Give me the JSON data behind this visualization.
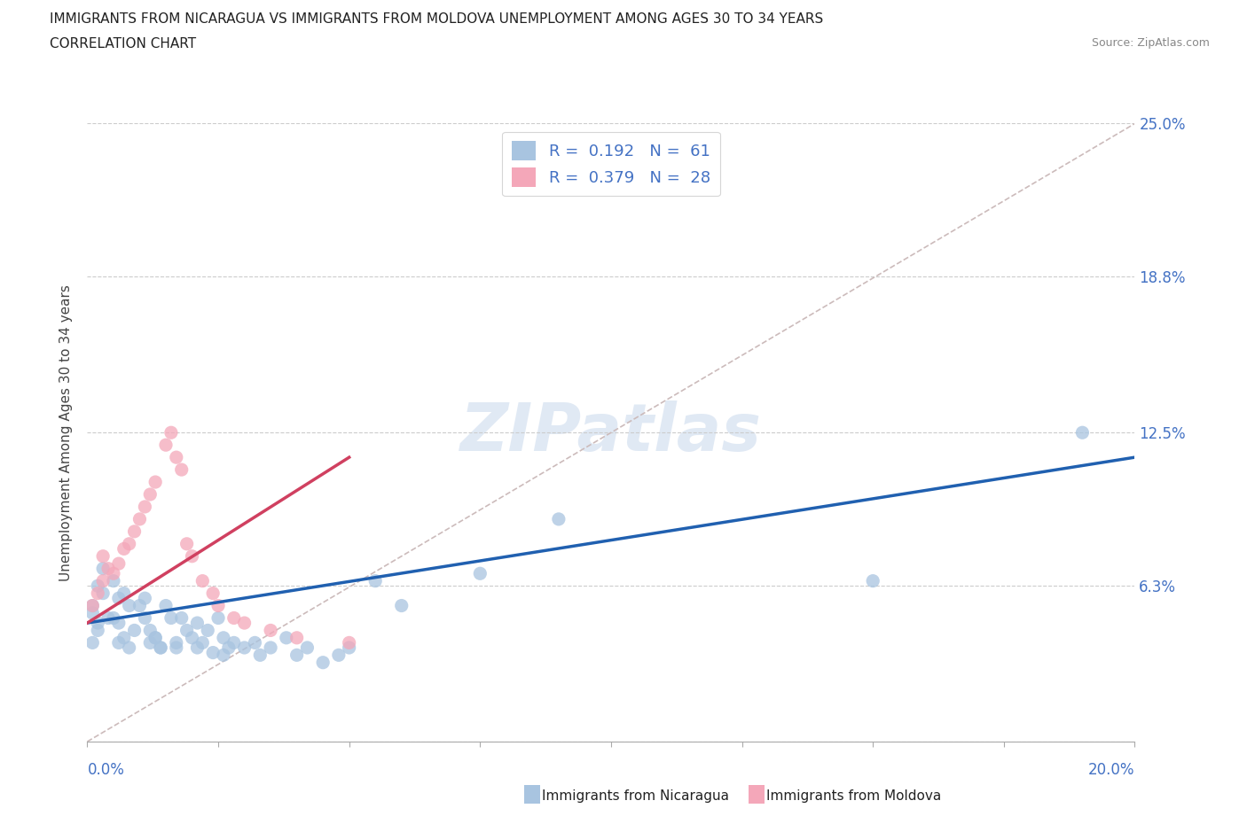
{
  "title_line1": "IMMIGRANTS FROM NICARAGUA VS IMMIGRANTS FROM MOLDOVA UNEMPLOYMENT AMONG AGES 30 TO 34 YEARS",
  "title_line2": "CORRELATION CHART",
  "source_text": "Source: ZipAtlas.com",
  "ylabel": "Unemployment Among Ages 30 to 34 years",
  "xlim": [
    0,
    0.2
  ],
  "ylim": [
    0,
    0.25
  ],
  "xticks": [
    0.0,
    0.025,
    0.05,
    0.075,
    0.1,
    0.125,
    0.15,
    0.175,
    0.2
  ],
  "xtick_labels_show": [
    "0.0%",
    "20.0%"
  ],
  "yticks": [
    0.0,
    0.063,
    0.125,
    0.188,
    0.25
  ],
  "ytick_labels_right": [
    "",
    "6.3%",
    "12.5%",
    "18.8%",
    "25.0%"
  ],
  "grid_color": "#cccccc",
  "nicaragua_color": "#a8c4e0",
  "moldova_color": "#f4a7b9",
  "nicaragua_R": 0.192,
  "nicaragua_N": 61,
  "moldova_R": 0.379,
  "moldova_N": 28,
  "nicaragua_line_color": "#2060b0",
  "moldova_line_color": "#d04060",
  "ref_line_color": "#ccbbbb",
  "tick_label_color": "#4472c4",
  "nicaragua_x": [
    0.002,
    0.003,
    0.001,
    0.004,
    0.002,
    0.001,
    0.003,
    0.005,
    0.002,
    0.001,
    0.006,
    0.007,
    0.008,
    0.006,
    0.005,
    0.009,
    0.007,
    0.008,
    0.006,
    0.01,
    0.011,
    0.012,
    0.013,
    0.011,
    0.012,
    0.014,
    0.015,
    0.016,
    0.014,
    0.013,
    0.017,
    0.018,
    0.019,
    0.017,
    0.02,
    0.021,
    0.022,
    0.023,
    0.021,
    0.024,
    0.025,
    0.026,
    0.027,
    0.028,
    0.026,
    0.03,
    0.032,
    0.033,
    0.035,
    0.038,
    0.04,
    0.042,
    0.045,
    0.048,
    0.05,
    0.055,
    0.06,
    0.075,
    0.09,
    0.15,
    0.19
  ],
  "nicaragua_y": [
    0.063,
    0.07,
    0.055,
    0.05,
    0.045,
    0.04,
    0.06,
    0.065,
    0.048,
    0.052,
    0.058,
    0.042,
    0.055,
    0.048,
    0.05,
    0.045,
    0.06,
    0.038,
    0.04,
    0.055,
    0.05,
    0.045,
    0.042,
    0.058,
    0.04,
    0.038,
    0.055,
    0.05,
    0.038,
    0.042,
    0.04,
    0.05,
    0.045,
    0.038,
    0.042,
    0.048,
    0.04,
    0.045,
    0.038,
    0.036,
    0.05,
    0.042,
    0.038,
    0.04,
    0.035,
    0.038,
    0.04,
    0.035,
    0.038,
    0.042,
    0.035,
    0.038,
    0.032,
    0.035,
    0.038,
    0.065,
    0.055,
    0.068,
    0.09,
    0.065,
    0.125
  ],
  "moldova_x": [
    0.001,
    0.002,
    0.003,
    0.004,
    0.003,
    0.005,
    0.006,
    0.007,
    0.008,
    0.009,
    0.01,
    0.011,
    0.012,
    0.013,
    0.015,
    0.016,
    0.017,
    0.018,
    0.019,
    0.02,
    0.022,
    0.024,
    0.025,
    0.028,
    0.03,
    0.035,
    0.04,
    0.05
  ],
  "moldova_y": [
    0.055,
    0.06,
    0.065,
    0.07,
    0.075,
    0.068,
    0.072,
    0.078,
    0.08,
    0.085,
    0.09,
    0.095,
    0.1,
    0.105,
    0.12,
    0.125,
    0.115,
    0.11,
    0.08,
    0.075,
    0.065,
    0.06,
    0.055,
    0.05,
    0.048,
    0.045,
    0.042,
    0.04
  ],
  "nic_line_x0": 0.0,
  "nic_line_y0": 0.048,
  "nic_line_x1": 0.2,
  "nic_line_y1": 0.115,
  "mol_line_x0": 0.0,
  "mol_line_y0": 0.048,
  "mol_line_x1": 0.05,
  "mol_line_y1": 0.115
}
